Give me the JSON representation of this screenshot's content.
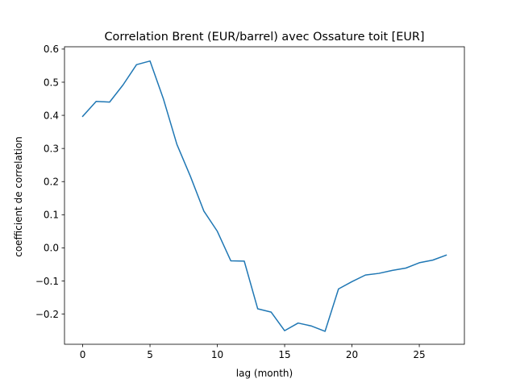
{
  "chart_data": {
    "type": "line",
    "title": "Correlation Brent (EUR/barrel) avec Ossature toit [EUR]",
    "xlabel": "lag (month)",
    "ylabel": "coefficient de correlation",
    "xlim": [
      -1.35,
      28.35
    ],
    "ylim": [
      -0.291,
      0.607
    ],
    "grid": false,
    "x_ticks": [
      0,
      5,
      10,
      15,
      20,
      25
    ],
    "x_tick_labels": [
      "0",
      "5",
      "10",
      "15",
      "20",
      "25"
    ],
    "y_ticks": [
      -0.2,
      -0.1,
      0.0,
      0.1,
      0.2,
      0.3,
      0.4,
      0.5,
      0.6
    ],
    "y_tick_labels": [
      "−0.2",
      "−0.1",
      "0.0",
      "0.1",
      "0.2",
      "0.3",
      "0.4",
      "0.5",
      "0.6"
    ],
    "colors": {
      "line": "#1f77b4"
    },
    "x": [
      0,
      1,
      2,
      3,
      4,
      5,
      6,
      7,
      8,
      9,
      10,
      11,
      12,
      13,
      14,
      15,
      16,
      17,
      18,
      19,
      20,
      21,
      22,
      23,
      24,
      25,
      26,
      27
    ],
    "series": [
      {
        "values": [
          0.397,
          0.442,
          0.44,
          0.492,
          0.553,
          0.564,
          0.449,
          0.312,
          0.216,
          0.111,
          0.05,
          -0.039,
          -0.04,
          -0.184,
          -0.194,
          -0.25,
          -0.227,
          -0.236,
          -0.252,
          -0.124,
          -0.102,
          -0.082,
          -0.077,
          -0.068,
          -0.061,
          -0.045,
          -0.037,
          -0.022
        ]
      }
    ]
  }
}
